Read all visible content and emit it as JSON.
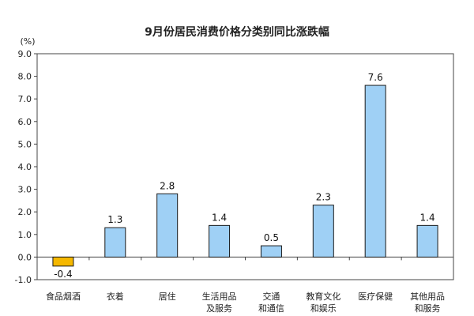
{
  "chart_data": {
    "type": "bar",
    "title": "9月份居民消费价格分类别同比涨跌幅",
    "unit": "(%)",
    "categories": [
      [
        "食品烟酒"
      ],
      [
        "衣着"
      ],
      [
        "居住"
      ],
      [
        "生活用品",
        "及服务"
      ],
      [
        "交通",
        "和通信"
      ],
      [
        "教育文化",
        "和娱乐"
      ],
      [
        "医疗保健"
      ],
      [
        "其他用品",
        "和服务"
      ]
    ],
    "values": [
      -0.4,
      1.3,
      2.8,
      1.4,
      0.5,
      2.3,
      7.6,
      1.4
    ],
    "data_labels": [
      "-0.4",
      "1.3",
      "2.8",
      "1.4",
      "0.5",
      "2.3",
      "7.6",
      "1.4"
    ],
    "ylim": [
      -1.0,
      9.0
    ],
    "yticks": [
      "-1.0",
      "0.0",
      "1.0",
      "2.0",
      "3.0",
      "4.0",
      "5.0",
      "6.0",
      "7.0",
      "8.0",
      "9.0"
    ],
    "grid": false,
    "colors": {
      "positive_fill": "#9fd0f5",
      "positive_stroke": "#1a1a1a",
      "negative_fill": "#f5b800",
      "negative_stroke": "#1a1a1a",
      "axis": "#444444"
    }
  }
}
